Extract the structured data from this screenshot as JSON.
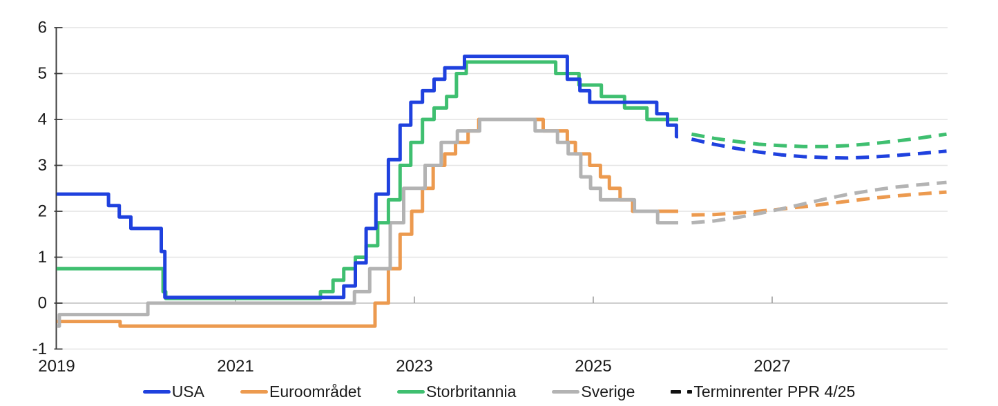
{
  "chart_data": {
    "type": "line",
    "title": "",
    "x_axis": {
      "range": [
        2019,
        2029
      ],
      "tick_labels": [
        "2019",
        "2021",
        "2023",
        "2025",
        "2027"
      ],
      "tick_values": [
        2019,
        2021,
        2023,
        2025,
        2027
      ]
    },
    "y_axis": {
      "range": [
        -1,
        6
      ],
      "tick_values": [
        6,
        5,
        4,
        3,
        2,
        1,
        0,
        -1
      ]
    },
    "grid": "horizontal",
    "solid_end": 2025.95,
    "series": [
      {
        "name": "Euroområdet",
        "color": "#EC9A4F",
        "style": "step",
        "points": [
          [
            2019.0,
            -0.4
          ],
          [
            2019.71,
            -0.5
          ],
          [
            2022.56,
            0.0
          ],
          [
            2022.71,
            0.75
          ],
          [
            2022.84,
            1.5
          ],
          [
            2022.97,
            2.0
          ],
          [
            2023.09,
            2.5
          ],
          [
            2023.21,
            3.0
          ],
          [
            2023.34,
            3.25
          ],
          [
            2023.46,
            3.5
          ],
          [
            2023.6,
            3.75
          ],
          [
            2023.72,
            4.0
          ],
          [
            2024.44,
            3.75
          ],
          [
            2024.71,
            3.5
          ],
          [
            2024.8,
            3.25
          ],
          [
            2024.96,
            3.0
          ],
          [
            2025.08,
            2.75
          ],
          [
            2025.18,
            2.5
          ],
          [
            2025.3,
            2.25
          ],
          [
            2025.44,
            2.0
          ]
        ]
      },
      {
        "name": "Sverige",
        "color": "#B3B3B3",
        "style": "step",
        "points": [
          [
            2019.0,
            -0.5
          ],
          [
            2019.03,
            -0.25
          ],
          [
            2020.02,
            0.0
          ],
          [
            2022.33,
            0.25
          ],
          [
            2022.5,
            0.75
          ],
          [
            2022.73,
            1.75
          ],
          [
            2022.88,
            2.5
          ],
          [
            2023.12,
            3.0
          ],
          [
            2023.3,
            3.5
          ],
          [
            2023.48,
            3.75
          ],
          [
            2023.73,
            4.0
          ],
          [
            2024.35,
            3.75
          ],
          [
            2024.6,
            3.5
          ],
          [
            2024.72,
            3.25
          ],
          [
            2024.86,
            2.75
          ],
          [
            2024.97,
            2.5
          ],
          [
            2025.08,
            2.25
          ],
          [
            2025.46,
            2.0
          ],
          [
            2025.72,
            1.75
          ]
        ]
      },
      {
        "name": "Storbritannia",
        "color": "#3FBF70",
        "style": "step",
        "points": [
          [
            2019.0,
            0.75
          ],
          [
            2020.19,
            0.25
          ],
          [
            2020.22,
            0.1
          ],
          [
            2021.95,
            0.25
          ],
          [
            2022.09,
            0.5
          ],
          [
            2022.21,
            0.75
          ],
          [
            2022.34,
            1.0
          ],
          [
            2022.46,
            1.25
          ],
          [
            2022.59,
            1.75
          ],
          [
            2022.71,
            2.25
          ],
          [
            2022.84,
            3.0
          ],
          [
            2022.96,
            3.5
          ],
          [
            2023.09,
            4.0
          ],
          [
            2023.22,
            4.25
          ],
          [
            2023.36,
            4.5
          ],
          [
            2023.47,
            5.0
          ],
          [
            2023.58,
            5.25
          ],
          [
            2024.58,
            5.0
          ],
          [
            2024.84,
            4.75
          ],
          [
            2025.09,
            4.5
          ],
          [
            2025.35,
            4.25
          ],
          [
            2025.6,
            4.0
          ]
        ]
      },
      {
        "name": "USA",
        "color": "#1F41DE",
        "style": "step",
        "points": [
          [
            2019.0,
            2.375
          ],
          [
            2019.58,
            2.125
          ],
          [
            2019.7,
            1.875
          ],
          [
            2019.83,
            1.625
          ],
          [
            2020.17,
            1.125
          ],
          [
            2020.21,
            0.125
          ],
          [
            2022.21,
            0.375
          ],
          [
            2022.34,
            0.875
          ],
          [
            2022.46,
            1.625
          ],
          [
            2022.57,
            2.375
          ],
          [
            2022.71,
            3.125
          ],
          [
            2022.84,
            3.875
          ],
          [
            2022.96,
            4.375
          ],
          [
            2023.09,
            4.625
          ],
          [
            2023.22,
            4.875
          ],
          [
            2023.34,
            5.125
          ],
          [
            2023.56,
            5.375
          ],
          [
            2024.71,
            4.875
          ],
          [
            2024.85,
            4.625
          ],
          [
            2024.96,
            4.375
          ],
          [
            2025.71,
            4.125
          ],
          [
            2025.83,
            3.875
          ],
          [
            2025.93,
            3.625
          ]
        ]
      }
    ],
    "forwards": [
      {
        "name": "Euroområdet terminrenter",
        "color": "#EC9A4F",
        "style": "dashed",
        "points": [
          [
            2026.1,
            1.92
          ],
          [
            2026.35,
            1.93
          ],
          [
            2026.6,
            1.96
          ],
          [
            2026.85,
            2.0
          ],
          [
            2027.1,
            2.05
          ],
          [
            2027.35,
            2.1
          ],
          [
            2027.6,
            2.16
          ],
          [
            2027.85,
            2.22
          ],
          [
            2028.1,
            2.28
          ],
          [
            2028.35,
            2.33
          ],
          [
            2028.6,
            2.37
          ],
          [
            2028.95,
            2.42
          ]
        ]
      },
      {
        "name": "Sverige terminrenter",
        "color": "#B3B3B3",
        "style": "dashed",
        "points": [
          [
            2026.1,
            1.75
          ],
          [
            2026.35,
            1.79
          ],
          [
            2026.6,
            1.86
          ],
          [
            2026.85,
            1.95
          ],
          [
            2027.1,
            2.05
          ],
          [
            2027.35,
            2.16
          ],
          [
            2027.6,
            2.27
          ],
          [
            2027.85,
            2.37
          ],
          [
            2028.1,
            2.45
          ],
          [
            2028.35,
            2.52
          ],
          [
            2028.6,
            2.57
          ],
          [
            2028.95,
            2.63
          ]
        ]
      },
      {
        "name": "Storbritannia terminrenter",
        "color": "#3FBF70",
        "style": "dashed",
        "points": [
          [
            2026.1,
            3.68
          ],
          [
            2026.35,
            3.59
          ],
          [
            2026.6,
            3.52
          ],
          [
            2026.85,
            3.46
          ],
          [
            2027.1,
            3.43
          ],
          [
            2027.35,
            3.41
          ],
          [
            2027.6,
            3.41
          ],
          [
            2027.85,
            3.43
          ],
          [
            2028.1,
            3.47
          ],
          [
            2028.35,
            3.52
          ],
          [
            2028.6,
            3.58
          ],
          [
            2028.95,
            3.68
          ]
        ]
      },
      {
        "name": "USA terminrenter",
        "color": "#1F41DE",
        "style": "dashed",
        "points": [
          [
            2026.1,
            3.57
          ],
          [
            2026.35,
            3.46
          ],
          [
            2026.6,
            3.37
          ],
          [
            2026.85,
            3.29
          ],
          [
            2027.1,
            3.23
          ],
          [
            2027.35,
            3.19
          ],
          [
            2027.6,
            3.17
          ],
          [
            2027.85,
            3.16
          ],
          [
            2028.1,
            3.18
          ],
          [
            2028.35,
            3.21
          ],
          [
            2028.6,
            3.25
          ],
          [
            2028.95,
            3.31
          ]
        ]
      }
    ],
    "legend": [
      {
        "label": "USA",
        "color": "#1F41DE",
        "style": "solid"
      },
      {
        "label": "Euroområdet",
        "color": "#EC9A4F",
        "style": "solid"
      },
      {
        "label": "Storbritannia",
        "color": "#3FBF70",
        "style": "solid"
      },
      {
        "label": "Sverige",
        "color": "#B3B3B3",
        "style": "solid"
      },
      {
        "label": "Terminrenter PPR 4/25",
        "color": "#111111",
        "style": "dashed"
      }
    ],
    "legend_position": "bottom",
    "colors": {
      "axis_line": "#3d3d3d",
      "grid_line": "#e4e4e4",
      "zero_line": "#bdbdbd",
      "x_tick": "#999999",
      "text": "#1a1a1a"
    }
  }
}
